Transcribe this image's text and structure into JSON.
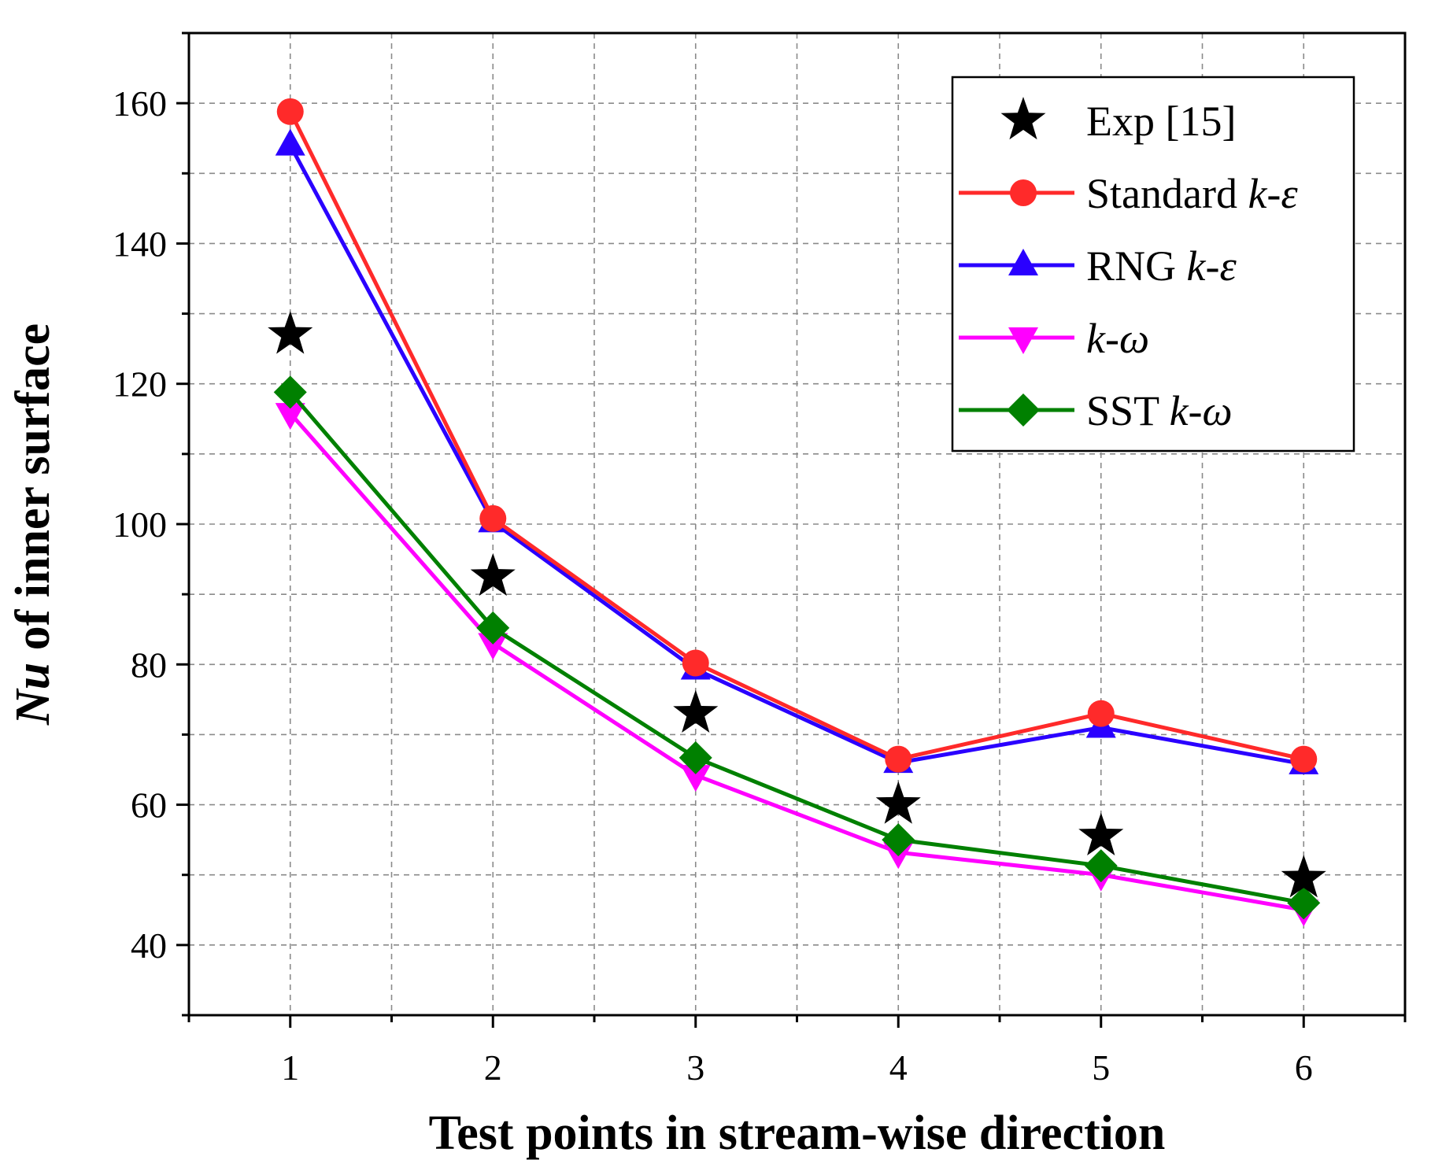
{
  "chart_data": {
    "type": "line",
    "title": "",
    "xlabel": "Test points in stream-wise direction",
    "ylabel": {
      "italic": "Nu",
      "rest": " of inner surface"
    },
    "x": [
      1,
      2,
      3,
      4,
      5,
      6
    ],
    "xlim": [
      0.5,
      6.5
    ],
    "ylim": [
      30,
      170
    ],
    "yticks": [
      40,
      60,
      80,
      100,
      120,
      140,
      160
    ],
    "xticks": [
      1,
      2,
      3,
      4,
      5,
      6
    ],
    "grid": true,
    "legend_position": "top-right",
    "series": [
      {
        "name": "Exp [15]",
        "label_plain": "Exp [15]",
        "label_italic": "",
        "marker": "star",
        "line": false,
        "color": "#000000",
        "values": [
          127,
          92.5,
          73,
          60,
          55.5,
          49.5
        ]
      },
      {
        "name": "Standard k-ε",
        "label_plain": "Standard ",
        "label_italic": "k-ε",
        "marker": "circle",
        "line": true,
        "color": "#ff2a2a",
        "values": [
          158.8,
          100.8,
          80.2,
          66.5,
          73,
          66.5
        ]
      },
      {
        "name": "RNG k-ε",
        "label_plain": "RNG ",
        "label_italic": "k-ε",
        "marker": "triangle-up",
        "line": true,
        "color": "#2a00ff",
        "values": [
          154,
          100.3,
          79.3,
          66,
          71,
          65.8
        ]
      },
      {
        "name": "k-ω",
        "label_plain": "",
        "label_italic": "k-ω",
        "marker": "triangle-down",
        "line": true,
        "color": "#ff00ff",
        "values": [
          115.8,
          83,
          64.2,
          53.2,
          50,
          45
        ]
      },
      {
        "name": "SST k-ω",
        "label_plain": "SST ",
        "label_italic": "k-ω",
        "marker": "diamond",
        "line": true,
        "color": "#008000",
        "values": [
          118.8,
          85.2,
          66.7,
          55,
          51.3,
          46
        ]
      }
    ]
  }
}
